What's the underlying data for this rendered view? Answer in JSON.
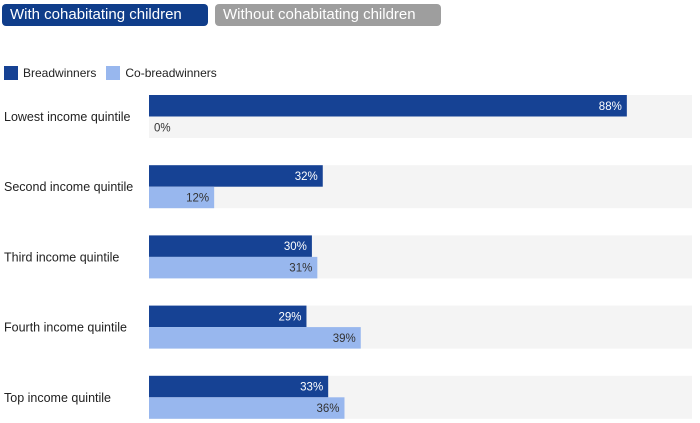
{
  "tabs": [
    {
      "label": "With cohabitating children",
      "active": true
    },
    {
      "label": "Without cohabitating children",
      "active": false
    }
  ],
  "colors": {
    "tab_active": "#0f3d8a",
    "tab_inactive": "#9e9e9e",
    "breadwinners": "#164294",
    "co_breadwinners": "#98b7ee",
    "track": "#f4f4f4"
  },
  "chart_data": {
    "type": "bar",
    "orientation": "horizontal",
    "categories": [
      "Lowest income quintile",
      "Second income quintile",
      "Third income quintile",
      "Fourth income quintile",
      "Top income quintile"
    ],
    "series": [
      {
        "name": "Breadwinners",
        "values": [
          88,
          32,
          30,
          29,
          33
        ],
        "labels": [
          "88%",
          "32%",
          "30%",
          "29%",
          "33%"
        ]
      },
      {
        "name": "Co-breadwinners",
        "values": [
          0,
          12,
          31,
          39,
          36
        ],
        "labels": [
          "0%",
          "12%",
          "31%",
          "39%",
          "36%"
        ]
      }
    ],
    "xlim": [
      0,
      100
    ],
    "legend": "top-left",
    "grid": false
  }
}
